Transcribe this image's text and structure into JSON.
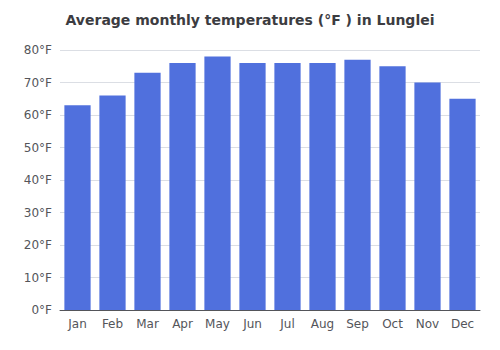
{
  "chart_data": {
    "type": "bar",
    "title": "Average monthly temperatures (°F ) in Lunglei",
    "categories": [
      "Jan",
      "Feb",
      "Mar",
      "Apr",
      "May",
      "Jun",
      "Jul",
      "Aug",
      "Sep",
      "Oct",
      "Nov",
      "Dec"
    ],
    "values": [
      63,
      66,
      73,
      76,
      78,
      76,
      76,
      76,
      77,
      75,
      70,
      65
    ],
    "ylim": [
      0,
      80
    ],
    "yticks": [
      {
        "value": 0,
        "label": "0°F"
      },
      {
        "value": 10,
        "label": "10°F"
      },
      {
        "value": 20,
        "label": "20°F"
      },
      {
        "value": 30,
        "label": "30°F"
      },
      {
        "value": 40,
        "label": "40°F"
      },
      {
        "value": 50,
        "label": "50°F"
      },
      {
        "value": 60,
        "label": "60°F"
      },
      {
        "value": 70,
        "label": "70°F"
      },
      {
        "value": 80,
        "label": "80°F"
      }
    ],
    "grid": true
  }
}
